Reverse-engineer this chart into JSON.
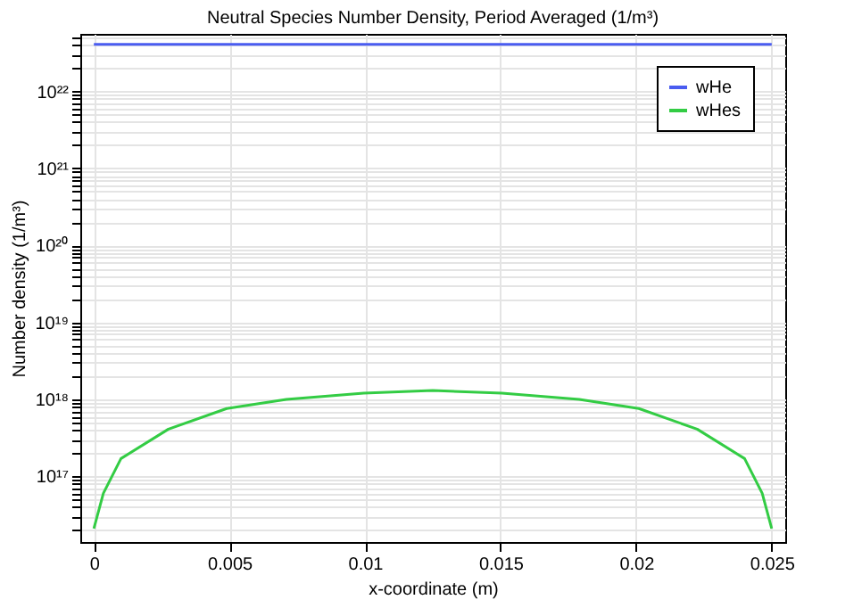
{
  "chart_data": {
    "type": "line",
    "title": "Neutral Species Number Density, Period Averaged (1/m³)",
    "xlabel": "x-coordinate (m)",
    "ylabel": "Number density (1/m³)",
    "series": [
      {
        "name": "wHe",
        "color": "#4a5cf0",
        "x": [
          0,
          0.025
        ],
        "values": [
          4.1e+22,
          4.1e+22
        ]
      },
      {
        "name": "wHes",
        "color": "#33cc44",
        "x": [
          0,
          0.00035,
          0.001,
          0.00275,
          0.0049,
          0.0071,
          0.00995,
          0.0125,
          0.01505,
          0.0179,
          0.0201,
          0.02225,
          0.024,
          0.02465,
          0.025
        ],
        "values": [
          2.1e+16,
          6e+16,
          1.7e+17,
          4.1e+17,
          7.6e+17,
          1e+18,
          1.2e+18,
          1.3e+18,
          1.2e+18,
          1e+18,
          7.6e+17,
          4.1e+17,
          1.7e+17,
          6e+16,
          2.1e+16
        ]
      }
    ],
    "log": "y",
    "xlim": [
      -0.0005,
      0.0255
    ],
    "xticks": [
      0,
      0.005,
      0.01,
      0.015,
      0.02,
      0.025
    ],
    "ylim": [
      1.4e+16,
      5.6e+22
    ],
    "yticks": [
      {
        "value": 2e+16,
        "label": null
      },
      {
        "value": 3e+16,
        "label": null
      },
      {
        "value": 4e+16,
        "label": null
      },
      {
        "value": 5e+16,
        "label": null
      },
      {
        "value": 6e+16,
        "label": null
      },
      {
        "value": 7e+16,
        "label": null
      },
      {
        "value": 8e+16,
        "label": null
      },
      {
        "value": 9e+16,
        "label": null
      },
      {
        "value": 1e+17,
        "label": "10¹⁷"
      },
      {
        "value": 2e+17,
        "label": null
      },
      {
        "value": 3e+17,
        "label": null
      },
      {
        "value": 4e+17,
        "label": null
      },
      {
        "value": 5e+17,
        "label": null
      },
      {
        "value": 6e+17,
        "label": null
      },
      {
        "value": 7e+17,
        "label": null
      },
      {
        "value": 8e+17,
        "label": null
      },
      {
        "value": 9e+17,
        "label": null
      },
      {
        "value": 1e+18,
        "label": "10¹⁸"
      },
      {
        "value": 2e+18,
        "label": null
      },
      {
        "value": 3e+18,
        "label": null
      },
      {
        "value": 4e+18,
        "label": null
      },
      {
        "value": 5e+18,
        "label": null
      },
      {
        "value": 6e+18,
        "label": null
      },
      {
        "value": 7e+18,
        "label": null
      },
      {
        "value": 8e+18,
        "label": null
      },
      {
        "value": 9e+18,
        "label": null
      },
      {
        "value": 1e+19,
        "label": "10¹⁹"
      },
      {
        "value": 2e+19,
        "label": null
      },
      {
        "value": 3e+19,
        "label": null
      },
      {
        "value": 4e+19,
        "label": null
      },
      {
        "value": 5e+19,
        "label": null
      },
      {
        "value": 6e+19,
        "label": null
      },
      {
        "value": 7e+19,
        "label": null
      },
      {
        "value": 8e+19,
        "label": null
      },
      {
        "value": 9e+19,
        "label": null
      },
      {
        "value": 1e+20,
        "label": "10²⁰"
      },
      {
        "value": 2e+20,
        "label": null
      },
      {
        "value": 3e+20,
        "label": null
      },
      {
        "value": 4e+20,
        "label": null
      },
      {
        "value": 5e+20,
        "label": null
      },
      {
        "value": 6e+20,
        "label": null
      },
      {
        "value": 7e+20,
        "label": null
      },
      {
        "value": 8e+20,
        "label": null
      },
      {
        "value": 9e+20,
        "label": null
      },
      {
        "value": 1e+21,
        "label": "10²¹"
      },
      {
        "value": 2e+21,
        "label": null
      },
      {
        "value": 3e+21,
        "label": null
      },
      {
        "value": 4e+21,
        "label": null
      },
      {
        "value": 5e+21,
        "label": null
      },
      {
        "value": 6e+21,
        "label": null
      },
      {
        "value": 7e+21,
        "label": null
      },
      {
        "value": 8e+21,
        "label": null
      },
      {
        "value": 9e+21,
        "label": null
      },
      {
        "value": 1e+22,
        "label": "10²²"
      },
      {
        "value": 2e+22,
        "label": null
      },
      {
        "value": 3e+22,
        "label": null
      },
      {
        "value": 4e+22,
        "label": null
      },
      {
        "value": 5e+22,
        "label": null
      }
    ],
    "grid": true,
    "legend": "top right",
    "line_style": "solid",
    "marker": "none"
  }
}
